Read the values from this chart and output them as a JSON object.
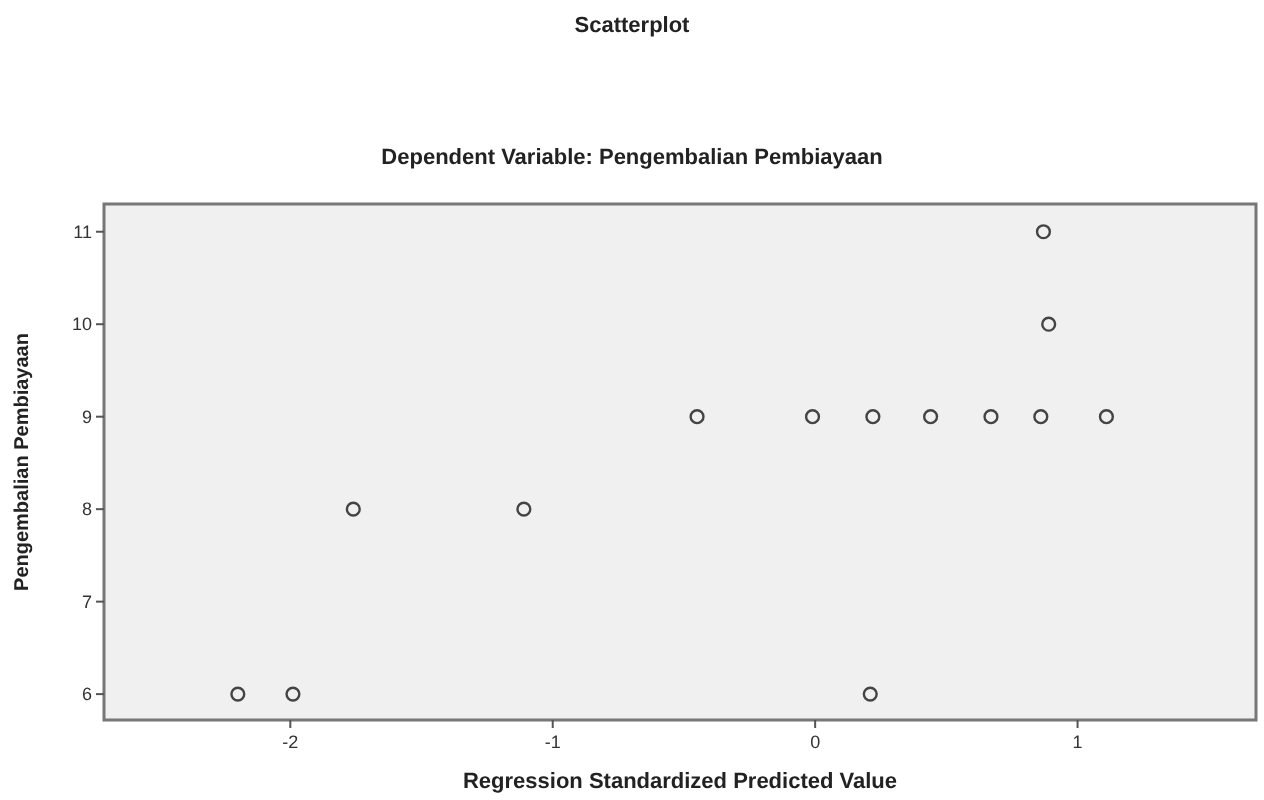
{
  "chart_data": {
    "type": "scatter",
    "title": "Scatterplot",
    "subtitle": "Dependent Variable: Pengembalian Pembiayaan",
    "xlabel": "Regression Standardized Predicted Value",
    "ylabel": "Pengembalian Pembiayaan",
    "x": [
      -2.2,
      -1.99,
      -1.76,
      -1.11,
      -0.45,
      -0.01,
      0.22,
      0.44,
      0.67,
      0.86,
      1.11,
      0.87,
      0.89,
      0.21
    ],
    "values": [
      6,
      6,
      8,
      8,
      9,
      9,
      9,
      9,
      9,
      9,
      9,
      11,
      10,
      6
    ],
    "color": "#444444",
    "marker": "circle",
    "grid": false,
    "xlim": [
      -2.71,
      1.68
    ],
    "ylim": [
      5.72,
      11.3
    ],
    "xticks": [
      -2,
      -1,
      0,
      1
    ],
    "yticks": [
      6,
      7,
      8,
      9,
      10,
      11
    ]
  }
}
